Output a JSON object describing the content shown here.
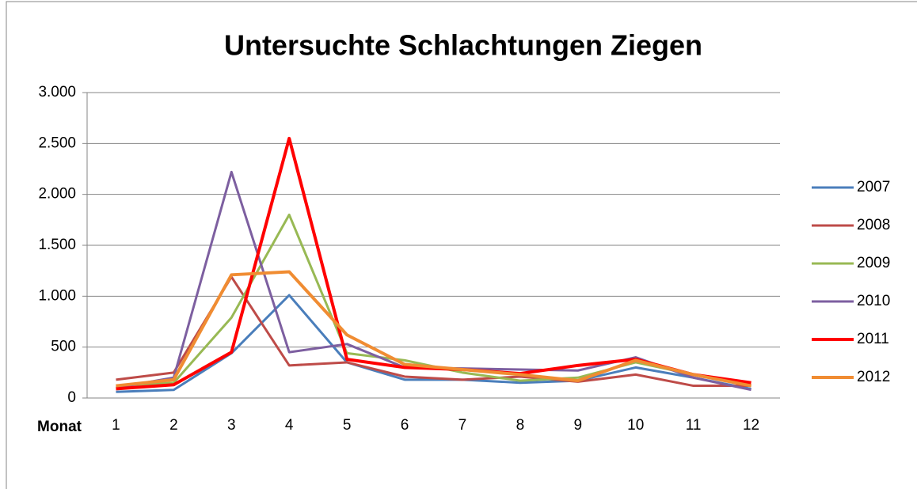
{
  "chart_data": {
    "type": "line",
    "title": "Untersuchte Schlachtungen Ziegen",
    "x_label": "Monat",
    "categories": [
      "1",
      "2",
      "3",
      "4",
      "5",
      "6",
      "7",
      "8",
      "9",
      "10",
      "11",
      "12"
    ],
    "series": [
      {
        "name": "2007",
        "color": "#4a7ebb",
        "line_width": 3,
        "values": [
          60,
          80,
          440,
          1010,
          350,
          180,
          180,
          150,
          170,
          300,
          200,
          90
        ]
      },
      {
        "name": "2008",
        "color": "#be4b48",
        "line_width": 3,
        "values": [
          180,
          250,
          1190,
          320,
          350,
          210,
          180,
          210,
          160,
          230,
          120,
          120
        ]
      },
      {
        "name": "2009",
        "color": "#98b954",
        "line_width": 3,
        "values": [
          120,
          150,
          790,
          1800,
          440,
          370,
          250,
          170,
          200,
          350,
          230,
          120
        ]
      },
      {
        "name": "2010",
        "color": "#7d5fa0",
        "line_width": 3,
        "values": [
          100,
          200,
          2220,
          450,
          530,
          300,
          290,
          280,
          270,
          400,
          200,
          80
        ]
      },
      {
        "name": "2011",
        "color": "#ff0000",
        "line_width": 4,
        "values": [
          90,
          130,
          450,
          2550,
          380,
          300,
          280,
          240,
          320,
          380,
          230,
          150
        ]
      },
      {
        "name": "2012",
        "color": "#f08c32",
        "line_width": 4,
        "values": [
          120,
          180,
          1210,
          1240,
          620,
          330,
          280,
          230,
          170,
          370,
          230,
          120
        ]
      }
    ],
    "ylim": [
      0,
      3000
    ],
    "yticks": [
      0,
      500,
      {
        "value": 1000,
        "label": "1.000"
      },
      {
        "value": 1500,
        "label": "1.500"
      },
      {
        "value": 2000,
        "label": "2.000"
      },
      {
        "value": 2500,
        "label": "2.500"
      },
      {
        "value": 3000,
        "label": "3.000"
      }
    ],
    "grid": true,
    "legend": "right"
  }
}
